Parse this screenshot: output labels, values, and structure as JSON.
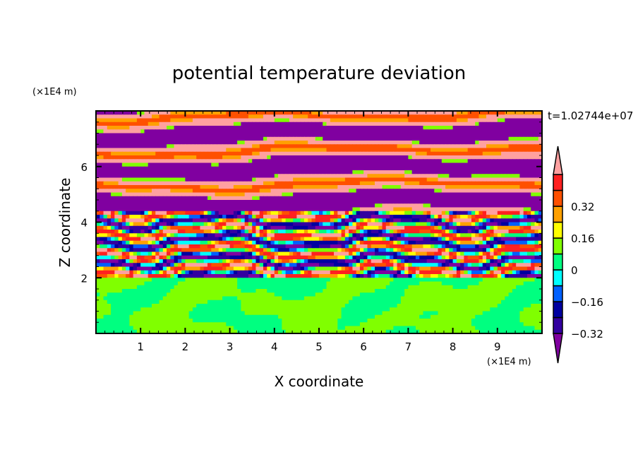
{
  "chart_data": {
    "type": "heatmap",
    "title": "potential temperature deviation",
    "xlabel": "X coordinate",
    "ylabel": "Z coordinate",
    "x_unit": "(×1E4 m)",
    "y_unit": "(×1E4 m)",
    "xlim": [
      0,
      10
    ],
    "ylim": [
      0,
      8
    ],
    "x_ticks": [
      "1",
      "2",
      "3",
      "4",
      "5",
      "6",
      "7",
      "8",
      "9"
    ],
    "x_tick_values": [
      1,
      2,
      3,
      4,
      5,
      6,
      7,
      8,
      9
    ],
    "y_ticks": [
      "2",
      "4",
      "6"
    ],
    "y_tick_values": [
      2,
      4,
      6
    ],
    "time_label": "t=1.02744e+07",
    "levels": [
      -0.4,
      -0.32,
      -0.24,
      -0.16,
      -0.08,
      0,
      0.08,
      0.16,
      0.24,
      0.32,
      0.4
    ],
    "colors": [
      "#8000a0",
      "#3300a0",
      "#0000a0",
      "#0060ff",
      "#00ffff",
      "#00ff80",
      "#80ff00",
      "#ffff00",
      "#ffa000",
      "#ff5000",
      "#ff2020",
      "#ffa0a0"
    ],
    "colorbar_labels": [
      {
        "text": "0.32",
        "value": 0.32
      },
      {
        "text": "0.16",
        "value": 0.16
      },
      {
        "text": "0",
        "value": 0
      },
      {
        "text": "−0.16",
        "value": -0.16
      },
      {
        "text": "−0.32",
        "value": -0.32
      }
    ]
  }
}
